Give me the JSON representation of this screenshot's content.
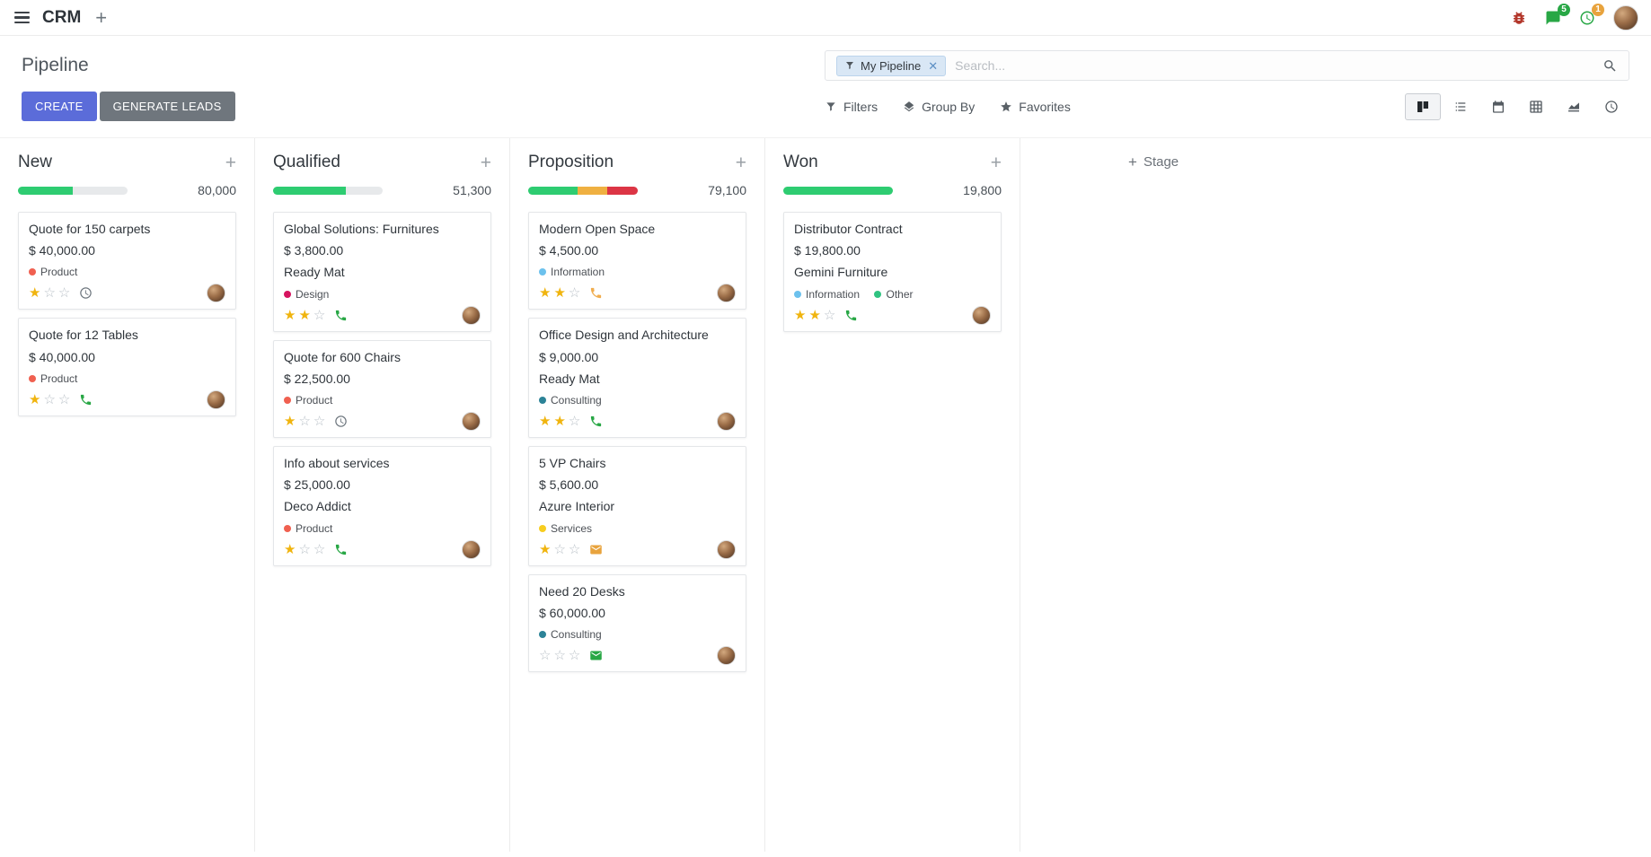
{
  "topbar": {
    "app_name": "CRM",
    "messages_badge": "5",
    "activities_badge": "1"
  },
  "control_panel": {
    "title": "Pipeline",
    "create_button": "CREATE",
    "generate_leads_button": "GENERATE LEADS",
    "search": {
      "facet": "My Pipeline",
      "placeholder": "Search..."
    },
    "filters": "Filters",
    "group_by": "Group By",
    "favorites": "Favorites",
    "view_switcher_icons": [
      "kanban",
      "list",
      "calendar",
      "pivot",
      "graph",
      "activity"
    ],
    "active_view": "kanban"
  },
  "colors": {
    "create_button": "#5b6cd9",
    "generate_button": "#6f767d",
    "progress_green": "#2ecc71",
    "progress_yellow": "#efb041",
    "progress_red": "#dc3545",
    "star_filled": "#f0b40e"
  },
  "kanban": {
    "add_stage_label": "Stage",
    "columns": [
      {
        "name": "New",
        "total": "80,000",
        "progress": [
          {
            "color": "#2ecc71",
            "pct": "50%"
          }
        ],
        "cards": [
          {
            "title": "Quote for 150 carpets",
            "amount": "$ 40,000.00",
            "tags": [
              {
                "label": "Product",
                "color": "#F06050"
              }
            ],
            "stars": 1,
            "activity": {
              "icon": "clock-icon",
              "color": "#6c757d"
            }
          },
          {
            "title": "Quote for 12 Tables",
            "amount": "$ 40,000.00",
            "tags": [
              {
                "label": "Product",
                "color": "#F06050"
              }
            ],
            "stars": 1,
            "activity": {
              "icon": "phone-icon",
              "color": "#28a745"
            }
          }
        ]
      },
      {
        "name": "Qualified",
        "total": "51,300",
        "progress": [
          {
            "color": "#2ecc71",
            "pct": "66%"
          }
        ],
        "cards": [
          {
            "title": "Global Solutions: Furnitures",
            "amount": "$ 3,800.00",
            "partner": "Ready Mat",
            "tags": [
              {
                "label": "Design",
                "color": "#D6145F"
              }
            ],
            "stars": 2,
            "activity": {
              "icon": "phone-icon",
              "color": "#28a745"
            }
          },
          {
            "title": "Quote for 600 Chairs",
            "amount": "$ 22,500.00",
            "tags": [
              {
                "label": "Product",
                "color": "#F06050"
              }
            ],
            "stars": 1,
            "activity": {
              "icon": "clock-icon",
              "color": "#6c757d"
            }
          },
          {
            "title": "Info about services",
            "amount": "$ 25,000.00",
            "partner": "Deco Addict",
            "tags": [
              {
                "label": "Product",
                "color": "#F06050"
              }
            ],
            "stars": 1,
            "activity": {
              "icon": "phone-icon",
              "color": "#28a745"
            }
          }
        ]
      },
      {
        "name": "Proposition",
        "total": "79,100",
        "progress": [
          {
            "color": "#2ecc71",
            "pct": "45%"
          },
          {
            "color": "#efb041",
            "pct": "27%"
          },
          {
            "color": "#dc3545",
            "pct": "28%"
          }
        ],
        "cards": [
          {
            "title": "Modern Open Space",
            "amount": "$ 4,500.00",
            "tags": [
              {
                "label": "Information",
                "color": "#6CC1ED"
              }
            ],
            "stars": 2,
            "activity": {
              "icon": "phone-icon",
              "color": "#f0ad4e"
            }
          },
          {
            "title": "Office Design and Architecture",
            "amount": "$ 9,000.00",
            "partner": "Ready Mat",
            "tags": [
              {
                "label": "Consulting",
                "color": "#2C8397"
              }
            ],
            "stars": 2,
            "activity": {
              "icon": "phone-icon",
              "color": "#28a745"
            }
          },
          {
            "title": "5 VP Chairs",
            "amount": "$ 5,600.00",
            "partner": "Azure Interior",
            "tags": [
              {
                "label": "Services",
                "color": "#F7CD1F"
              }
            ],
            "stars": 1,
            "activity": {
              "icon": "envelope-icon",
              "color": "#e8a33d"
            }
          },
          {
            "title": "Need 20 Desks",
            "amount": "$ 60,000.00",
            "tags": [
              {
                "label": "Consulting",
                "color": "#2C8397"
              }
            ],
            "stars": 0,
            "activity": {
              "icon": "envelope-icon",
              "color": "#28a745"
            }
          }
        ]
      },
      {
        "name": "Won",
        "total": "19,800",
        "progress": [
          {
            "color": "#2ecc71",
            "pct": "100%"
          }
        ],
        "cards": [
          {
            "title": "Distributor Contract",
            "amount": "$ 19,800.00",
            "partner": "Gemini Furniture",
            "tags": [
              {
                "label": "Information",
                "color": "#6CC1ED"
              },
              {
                "label": "Other",
                "color": "#30C381"
              }
            ],
            "stars": 2,
            "activity": {
              "icon": "phone-icon",
              "color": "#28a745"
            }
          }
        ]
      }
    ]
  }
}
